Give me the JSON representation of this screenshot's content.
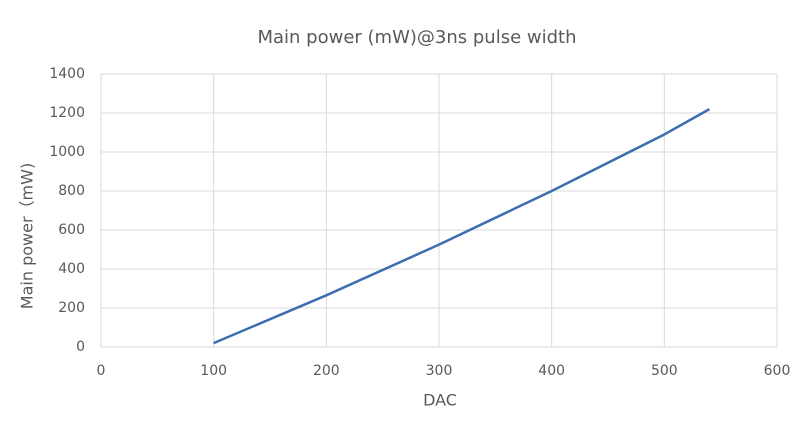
{
  "chart_data": {
    "type": "line",
    "title": "Main power (mW)@3ns pulse width",
    "x_label": "DAC",
    "y_label": "Main power（mW)",
    "series": [
      {
        "name": "Main power",
        "color": "#3d6eb0",
        "x": [
          100,
          200,
          300,
          400,
          500,
          540
        ],
        "values": [
          20,
          265,
          525,
          800,
          1090,
          1220
        ]
      }
    ],
    "xlim": [
      0,
      600
    ],
    "xticks": [
      0,
      100,
      200,
      300,
      400,
      500,
      600
    ],
    "ylim": [
      0,
      1400
    ],
    "yticks": [
      0,
      200,
      400,
      600,
      800,
      1000,
      1200,
      1400
    ],
    "grid": true
  }
}
